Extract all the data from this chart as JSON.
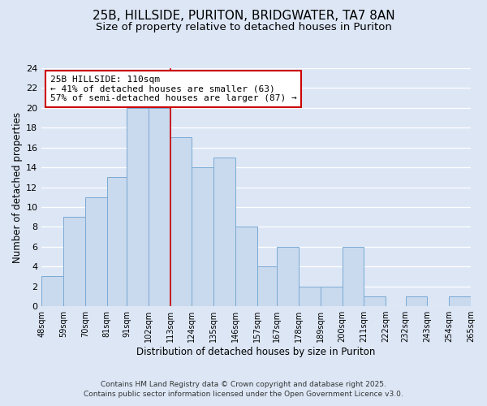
{
  "title": "25B, HILLSIDE, PURITON, BRIDGWATER, TA7 8AN",
  "subtitle": "Size of property relative to detached houses in Puriton",
  "xlabel": "Distribution of detached houses by size in Puriton",
  "ylabel": "Number of detached properties",
  "bar_edges": [
    48,
    59,
    70,
    81,
    91,
    102,
    113,
    124,
    135,
    146,
    157,
    167,
    178,
    189,
    200,
    211,
    222,
    232,
    243,
    254,
    265
  ],
  "bar_heights": [
    3,
    9,
    11,
    13,
    20,
    20,
    17,
    14,
    15,
    8,
    4,
    6,
    2,
    2,
    6,
    1,
    0,
    1,
    0,
    1
  ],
  "bar_color": "#c9d9ee",
  "bar_edge_color": "#7aaad4",
  "vline_x": 113,
  "vline_color": "#cc0000",
  "ylim": [
    0,
    24
  ],
  "yticks": [
    0,
    2,
    4,
    6,
    8,
    10,
    12,
    14,
    16,
    18,
    20,
    22,
    24
  ],
  "annotation_title": "25B HILLSIDE: 110sqm",
  "annotation_line1": "← 41% of detached houses are smaller (63)",
  "annotation_line2": "57% of semi-detached houses are larger (87) →",
  "annotation_box_color": "#ffffff",
  "annotation_box_edge": "#cc0000",
  "footer1": "Contains HM Land Registry data © Crown copyright and database right 2025.",
  "footer2": "Contains public sector information licensed under the Open Government Licence v3.0.",
  "background_color": "#dce6f5",
  "plot_background_color": "#dce6f5",
  "grid_color": "#ffffff",
  "title_fontsize": 11,
  "subtitle_fontsize": 9.5,
  "tick_labels": [
    "48sqm",
    "59sqm",
    "70sqm",
    "81sqm",
    "91sqm",
    "102sqm",
    "113sqm",
    "124sqm",
    "135sqm",
    "146sqm",
    "157sqm",
    "167sqm",
    "178sqm",
    "189sqm",
    "200sqm",
    "211sqm",
    "222sqm",
    "232sqm",
    "243sqm",
    "254sqm",
    "265sqm"
  ]
}
